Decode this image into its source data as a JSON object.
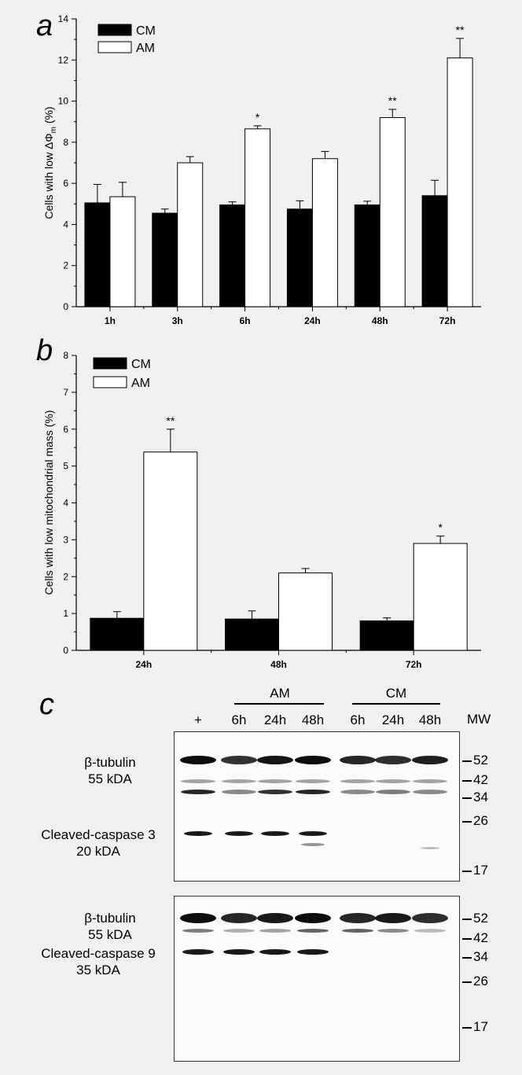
{
  "panels": {
    "a": "a",
    "b": "b",
    "c": "c"
  },
  "chart_data": [
    {
      "type": "bar",
      "categories": [
        "1h",
        "3h",
        "6h",
        "24h",
        "48h",
        "72h"
      ],
      "series": [
        {
          "name": "CM",
          "values": [
            5.05,
            4.55,
            4.95,
            4.75,
            4.95,
            5.4
          ],
          "errors": [
            0.9,
            0.2,
            0.15,
            0.4,
            0.18,
            0.75
          ],
          "color": "#000000"
        },
        {
          "name": "AM",
          "values": [
            5.35,
            7.0,
            8.65,
            7.2,
            9.2,
            12.1
          ],
          "errors": [
            0.7,
            0.3,
            0.15,
            0.35,
            0.4,
            0.95
          ],
          "color": "#ffffff"
        }
      ],
      "significance": [
        "",
        "",
        "*",
        "",
        "**",
        "**"
      ],
      "ylabel_main": "Cells with low ΔΦ",
      "ylabel_sub": "m",
      "ylabel_unit": "(%)",
      "ylim": [
        0,
        14
      ],
      "yticks": [
        0,
        2,
        4,
        6,
        8,
        10,
        12,
        14
      ],
      "legend": "top-left"
    },
    {
      "type": "bar",
      "categories": [
        "24h",
        "48h",
        "72h"
      ],
      "series": [
        {
          "name": "CM",
          "values": [
            0.87,
            0.85,
            0.8
          ],
          "errors": [
            0.18,
            0.22,
            0.08
          ],
          "color": "#000000"
        },
        {
          "name": "AM",
          "values": [
            5.38,
            2.1,
            2.9
          ],
          "errors": [
            0.62,
            0.12,
            0.2
          ],
          "color": "#ffffff"
        }
      ],
      "significance": [
        "**",
        "",
        "*"
      ],
      "ylabel": "Cells with low mitochondrial mass (%)",
      "ylim": [
        0,
        8
      ],
      "yticks": [
        0,
        1,
        2,
        3,
        4,
        5,
        6,
        7,
        8
      ],
      "legend": "top-left"
    }
  ],
  "blot": {
    "group_am": "AM",
    "group_cm": "CM",
    "lanes": [
      "+",
      "6h",
      "24h",
      "48h",
      "6h",
      "24h",
      "48h"
    ],
    "mw_header": "MW",
    "membrane1": {
      "label1_line1": "β-tubulin",
      "label1_line2": "55 kDA",
      "label2_line1": "Cleaved-caspase 3",
      "label2_line2": "20 kDA",
      "mw": [
        "52",
        "42",
        "34",
        "26",
        "17"
      ]
    },
    "membrane2": {
      "label1_line1": "β-tubulin",
      "label1_line2": "55 kDA",
      "label2_line1": "Cleaved-caspase 9",
      "label2_line2": "35 kDA",
      "mw": [
        "52",
        "42",
        "34",
        "26",
        "17"
      ]
    }
  }
}
